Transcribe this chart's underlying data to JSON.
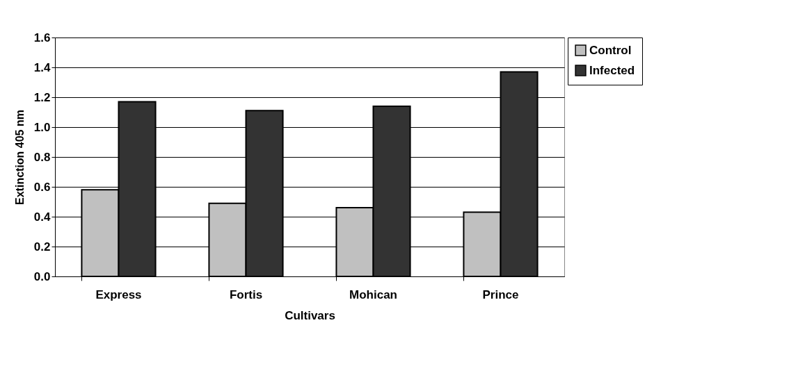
{
  "chart_data": {
    "type": "bar",
    "xlabel": "Cultivars",
    "ylabel": "Extinction 405 nm",
    "categories": [
      "Express",
      "Fortis",
      "Mohican",
      "Prince"
    ],
    "series": [
      {
        "name": "Control",
        "color": "#c0c0c0",
        "values": [
          0.58,
          0.49,
          0.46,
          0.43
        ]
      },
      {
        "name": "Infected",
        "color": "#333333",
        "values": [
          1.17,
          1.11,
          1.14,
          1.37
        ]
      }
    ],
    "ylim": [
      0,
      1.6
    ],
    "yticks": [
      {
        "value": 0,
        "label": "0.0"
      },
      0.2,
      0.4,
      0.6,
      0.8,
      {
        "value": 1,
        "label": "1.0"
      },
      1.2,
      1.4,
      1.6
    ],
    "grid": "y",
    "legend": "right"
  }
}
